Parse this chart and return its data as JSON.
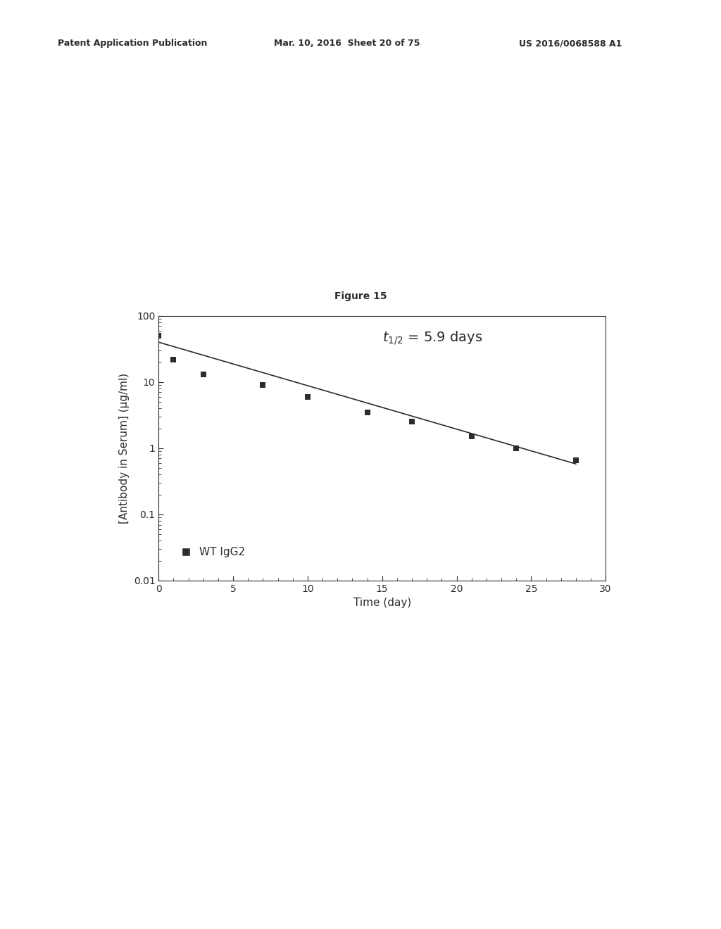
{
  "figure_title": "Figure 15",
  "header_left": "Patent Application Publication",
  "header_mid": "Mar. 10, 2016  Sheet 20 of 75",
  "header_right": "US 2016/0068588 A1",
  "xlabel": "Time (day)",
  "ylabel": "[Antibody in Serum] (µg/ml)",
  "legend_label": "WT IgG2",
  "xlim": [
    0,
    30
  ],
  "ylim_log": [
    0.01,
    100
  ],
  "xticks": [
    0,
    5,
    10,
    15,
    20,
    25,
    30
  ],
  "ytick_vals": [
    0.01,
    0.1,
    1,
    10,
    100
  ],
  "ytick_labels": [
    "0.01",
    "0.1",
    "1",
    "10",
    "100"
  ],
  "data_x": [
    0,
    1,
    3,
    7,
    10,
    14,
    17,
    21,
    24,
    28
  ],
  "data_y": [
    50,
    22,
    13,
    9,
    6,
    3.5,
    2.5,
    1.5,
    1.0,
    0.65
  ],
  "fit_x": [
    0,
    28
  ],
  "fit_y": [
    40,
    0.58
  ],
  "marker_color": "#2c2c2c",
  "line_color": "#2c2c2c",
  "text_color": "#2c2c2c",
  "bg_color": "#ffffff",
  "font_size_header": 9,
  "font_size_title": 10,
  "font_size_annotation": 14,
  "font_size_axis_label": 11,
  "font_size_tick": 10,
  "font_size_legend": 11
}
